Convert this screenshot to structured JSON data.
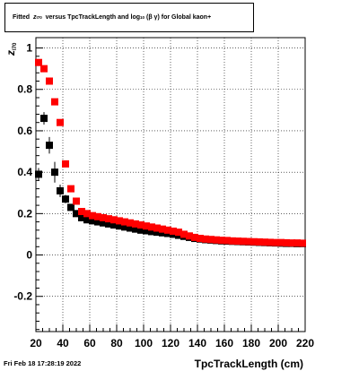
{
  "title": {
    "prefix": "Fitted",
    "z_symbol": "z",
    "z_sub": "I70",
    "mid": "versus TpcTrackLength and log",
    "log_sub": "10",
    "beta_gamma": "(β  γ)",
    "suffix": "for Global kaon+"
  },
  "footer": {
    "date": "Fri Feb 18 17:28:19 2022"
  },
  "chart_data": {
    "type": "scatter",
    "title": "Fitted z_I70 versus TpcTrackLength and log_10(β γ) for Global kaon+",
    "xlabel": "TpcTrackLength (cm)",
    "ylabel": "z",
    "ylabel_sub": "I70",
    "xlim": [
      20,
      220
    ],
    "ylim": [
      -0.37,
      1.05
    ],
    "x_ticks": [
      20,
      40,
      60,
      80,
      100,
      120,
      140,
      160,
      180,
      200,
      220
    ],
    "y_ticks": [
      -0.2,
      0,
      0.2,
      0.4,
      0.6,
      0.8,
      1
    ],
    "grid": true,
    "legend": "none",
    "series": [
      {
        "color": "#000000",
        "x": [
          22,
          26,
          30,
          34,
          38,
          42,
          46,
          50,
          54,
          58,
          62,
          66,
          70,
          74,
          78,
          82,
          86,
          90,
          94,
          98,
          102,
          106,
          110,
          114,
          118,
          122,
          126,
          130,
          134,
          138,
          142,
          146,
          150,
          154,
          158,
          162,
          166,
          170,
          174,
          178,
          182,
          186,
          190,
          194,
          198,
          202,
          206,
          210,
          214,
          218
        ],
        "y": [
          0.39,
          0.66,
          0.53,
          0.4,
          0.31,
          0.27,
          0.23,
          0.2,
          0.18,
          0.17,
          0.165,
          0.16,
          0.155,
          0.15,
          0.145,
          0.14,
          0.135,
          0.13,
          0.125,
          0.12,
          0.117,
          0.113,
          0.11,
          0.107,
          0.104,
          0.1,
          0.095,
          0.09,
          0.085,
          0.08,
          0.077,
          0.074,
          0.072,
          0.07,
          0.068,
          0.067,
          0.066,
          0.065,
          0.064,
          0.063,
          0.062,
          0.061,
          0.06,
          0.059,
          0.058,
          0.057,
          0.056,
          0.056,
          0.055,
          0.055
        ],
        "err": [
          0.03,
          0.03,
          0.04,
          0.05,
          0.03,
          0.02,
          0.01,
          0.01,
          0.01,
          0.01,
          0.005,
          0.005,
          0.005,
          0.005,
          0.005,
          0.005,
          0.005,
          0.005,
          0.005,
          0.005,
          0.005,
          0.005,
          0.005,
          0.005,
          0.005,
          0.005,
          0.005,
          0.005,
          0.005,
          0.005,
          0.005,
          0.005,
          0.005,
          0.005,
          0.005,
          0.005,
          0.005,
          0.005,
          0.005,
          0.005,
          0.005,
          0.005,
          0.005,
          0.005,
          0.005,
          0.005,
          0.005,
          0.005,
          0.005,
          0.005
        ]
      },
      {
        "color": "#ff0000",
        "x": [
          22,
          26,
          30,
          34,
          38,
          42,
          46,
          50,
          54,
          58,
          62,
          66,
          70,
          74,
          78,
          82,
          86,
          90,
          94,
          98,
          102,
          106,
          110,
          114,
          118,
          122,
          126,
          130,
          134,
          138,
          142,
          146,
          150,
          154,
          158,
          162,
          166,
          170,
          174,
          178,
          182,
          186,
          190,
          194,
          198,
          202,
          206,
          210,
          214,
          218
        ],
        "y": [
          0.93,
          0.9,
          0.84,
          0.74,
          0.64,
          0.44,
          0.32,
          0.26,
          0.21,
          0.2,
          0.19,
          0.185,
          0.18,
          0.175,
          0.17,
          0.165,
          0.16,
          0.155,
          0.15,
          0.145,
          0.14,
          0.135,
          0.13,
          0.125,
          0.12,
          0.115,
          0.11,
          0.1,
          0.092,
          0.085,
          0.08,
          0.077,
          0.075,
          0.073,
          0.071,
          0.07,
          0.068,
          0.067,
          0.066,
          0.065,
          0.064,
          0.063,
          0.062,
          0.061,
          0.06,
          0.06,
          0.059,
          0.058,
          0.058,
          0.057
        ],
        "err": [
          0.01,
          0.01,
          0.01,
          0.01,
          0.01,
          0.01,
          0.01,
          0.01,
          0.01,
          0.005,
          0.005,
          0.005,
          0.005,
          0.005,
          0.005,
          0.005,
          0.005,
          0.005,
          0.005,
          0.005,
          0.005,
          0.005,
          0.005,
          0.005,
          0.005,
          0.005,
          0.005,
          0.005,
          0.005,
          0.005,
          0.005,
          0.005,
          0.005,
          0.005,
          0.005,
          0.005,
          0.005,
          0.005,
          0.005,
          0.005,
          0.005,
          0.005,
          0.005,
          0.005,
          0.005,
          0.005,
          0.005,
          0.005,
          0.005,
          0.005
        ]
      }
    ]
  }
}
